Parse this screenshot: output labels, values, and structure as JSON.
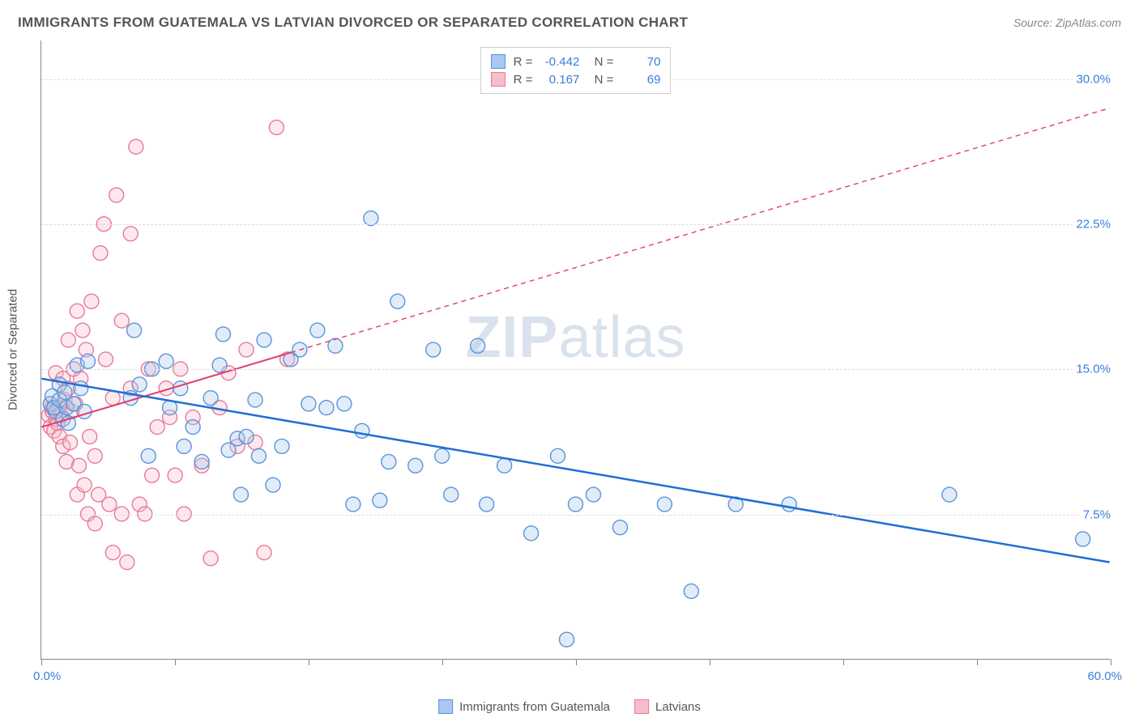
{
  "title": "IMMIGRANTS FROM GUATEMALA VS LATVIAN DIVORCED OR SEPARATED CORRELATION CHART",
  "source": "Source: ZipAtlas.com",
  "watermark_bold": "ZIP",
  "watermark_light": "atlas",
  "y_axis_label": "Divorced or Separated",
  "chart": {
    "type": "scatter",
    "xlim": [
      0,
      60
    ],
    "ylim": [
      0,
      32
    ],
    "x_tick_positions": [
      0,
      7.5,
      15,
      22.5,
      30,
      37.5,
      45,
      52.5,
      60
    ],
    "x_min_label": "0.0%",
    "x_max_label": "60.0%",
    "y_gridlines": [
      7.5,
      15.0,
      22.5,
      30.0
    ],
    "y_tick_labels": [
      "7.5%",
      "15.0%",
      "22.5%",
      "30.0%"
    ],
    "background_color": "#ffffff",
    "grid_color": "#dddddd",
    "axis_color": "#888888",
    "marker_radius": 9,
    "marker_stroke_width": 1.4,
    "marker_fill_opacity": 0.35,
    "series": [
      {
        "name": "Immigrants from Guatemala",
        "color_fill": "#a8c8ef",
        "color_stroke": "#5a94d8",
        "R": "-0.442",
        "N": "70",
        "trend": {
          "x1": 0,
          "y1": 14.5,
          "x2": 60,
          "y2": 5.0,
          "solid_until_x": 60,
          "stroke": "#1f6fd4",
          "width": 2.5
        },
        "points": [
          [
            0.5,
            13.2
          ],
          [
            0.6,
            13.6
          ],
          [
            0.8,
            12.8
          ],
          [
            0.7,
            13.0
          ],
          [
            1.0,
            13.4
          ],
          [
            1.2,
            12.4
          ],
          [
            1.0,
            14.2
          ],
          [
            1.3,
            13.8
          ],
          [
            1.5,
            12.2
          ],
          [
            1.4,
            13.0
          ],
          [
            1.8,
            13.2
          ],
          [
            2.0,
            15.2
          ],
          [
            2.2,
            14.0
          ],
          [
            2.4,
            12.8
          ],
          [
            2.6,
            15.4
          ],
          [
            5.2,
            17.0
          ],
          [
            5.0,
            13.5
          ],
          [
            5.5,
            14.2
          ],
          [
            6.0,
            10.5
          ],
          [
            6.2,
            15.0
          ],
          [
            7.0,
            15.4
          ],
          [
            7.2,
            13.0
          ],
          [
            7.8,
            14.0
          ],
          [
            8.0,
            11.0
          ],
          [
            8.5,
            12.0
          ],
          [
            9.0,
            10.2
          ],
          [
            9.5,
            13.5
          ],
          [
            10.0,
            15.2
          ],
          [
            10.2,
            16.8
          ],
          [
            10.5,
            10.8
          ],
          [
            11.0,
            11.4
          ],
          [
            11.2,
            8.5
          ],
          [
            11.5,
            11.5
          ],
          [
            12.0,
            13.4
          ],
          [
            12.2,
            10.5
          ],
          [
            12.5,
            16.5
          ],
          [
            13.0,
            9.0
          ],
          [
            13.5,
            11.0
          ],
          [
            14.0,
            15.5
          ],
          [
            14.5,
            16.0
          ],
          [
            15.0,
            13.2
          ],
          [
            15.5,
            17.0
          ],
          [
            16.0,
            13.0
          ],
          [
            16.5,
            16.2
          ],
          [
            17.0,
            13.2
          ],
          [
            17.5,
            8.0
          ],
          [
            18.0,
            11.8
          ],
          [
            18.5,
            22.8
          ],
          [
            19.0,
            8.2
          ],
          [
            19.5,
            10.2
          ],
          [
            20.0,
            18.5
          ],
          [
            21.0,
            10.0
          ],
          [
            22.0,
            16.0
          ],
          [
            22.5,
            10.5
          ],
          [
            23.0,
            8.5
          ],
          [
            24.5,
            16.2
          ],
          [
            25.0,
            8.0
          ],
          [
            26.0,
            10.0
          ],
          [
            27.5,
            6.5
          ],
          [
            29.0,
            10.5
          ],
          [
            29.5,
            1.0
          ],
          [
            30.0,
            8.0
          ],
          [
            31.0,
            8.5
          ],
          [
            32.5,
            6.8
          ],
          [
            35.0,
            8.0
          ],
          [
            36.5,
            3.5
          ],
          [
            39.0,
            8.0
          ],
          [
            42.0,
            8.0
          ],
          [
            51.0,
            8.5
          ],
          [
            58.5,
            6.2
          ]
        ]
      },
      {
        "name": "Latvians",
        "color_fill": "#f6bdcb",
        "color_stroke": "#e77a99",
        "R": "0.167",
        "N": "69",
        "trend": {
          "x1": 0,
          "y1": 12.0,
          "x2": 60,
          "y2": 28.5,
          "solid_until_x": 14,
          "stroke": "#e23d6d",
          "width": 2,
          "dash": "6,5"
        },
        "points": [
          [
            0.4,
            12.6
          ],
          [
            0.5,
            12.0
          ],
          [
            0.6,
            12.8
          ],
          [
            0.5,
            13.2
          ],
          [
            0.7,
            11.8
          ],
          [
            0.8,
            12.4
          ],
          [
            0.6,
            13.0
          ],
          [
            0.9,
            12.2
          ],
          [
            0.8,
            14.8
          ],
          [
            1.0,
            11.5
          ],
          [
            1.0,
            13.0
          ],
          [
            1.1,
            12.6
          ],
          [
            1.2,
            11.0
          ],
          [
            1.2,
            14.5
          ],
          [
            1.3,
            13.4
          ],
          [
            1.4,
            10.2
          ],
          [
            1.5,
            14.0
          ],
          [
            1.5,
            16.5
          ],
          [
            1.6,
            11.2
          ],
          [
            1.7,
            12.8
          ],
          [
            1.8,
            15.0
          ],
          [
            1.9,
            13.2
          ],
          [
            2.0,
            18.0
          ],
          [
            2.0,
            8.5
          ],
          [
            2.1,
            10.0
          ],
          [
            2.2,
            14.5
          ],
          [
            2.3,
            17.0
          ],
          [
            2.4,
            9.0
          ],
          [
            2.5,
            16.0
          ],
          [
            2.6,
            7.5
          ],
          [
            2.7,
            11.5
          ],
          [
            2.8,
            18.5
          ],
          [
            3.0,
            7.0
          ],
          [
            3.0,
            10.5
          ],
          [
            3.2,
            8.5
          ],
          [
            3.3,
            21.0
          ],
          [
            3.5,
            22.5
          ],
          [
            3.6,
            15.5
          ],
          [
            3.8,
            8.0
          ],
          [
            4.0,
            13.5
          ],
          [
            4.0,
            5.5
          ],
          [
            4.2,
            24.0
          ],
          [
            4.5,
            7.5
          ],
          [
            4.5,
            17.5
          ],
          [
            4.8,
            5.0
          ],
          [
            5.0,
            14.0
          ],
          [
            5.0,
            22.0
          ],
          [
            5.3,
            26.5
          ],
          [
            5.5,
            8.0
          ],
          [
            5.8,
            7.5
          ],
          [
            6.0,
            15.0
          ],
          [
            6.2,
            9.5
          ],
          [
            6.5,
            12.0
          ],
          [
            7.0,
            14.0
          ],
          [
            7.2,
            12.5
          ],
          [
            7.5,
            9.5
          ],
          [
            7.8,
            15.0
          ],
          [
            8.0,
            7.5
          ],
          [
            8.5,
            12.5
          ],
          [
            9.0,
            10.0
          ],
          [
            9.5,
            5.2
          ],
          [
            10.0,
            13.0
          ],
          [
            10.5,
            14.8
          ],
          [
            11.0,
            11.0
          ],
          [
            11.5,
            16.0
          ],
          [
            12.0,
            11.2
          ],
          [
            12.5,
            5.5
          ],
          [
            13.2,
            27.5
          ],
          [
            13.8,
            15.5
          ]
        ]
      }
    ]
  },
  "legend": {
    "series1_label": "Immigrants from Guatemala",
    "series2_label": "Latvians"
  }
}
